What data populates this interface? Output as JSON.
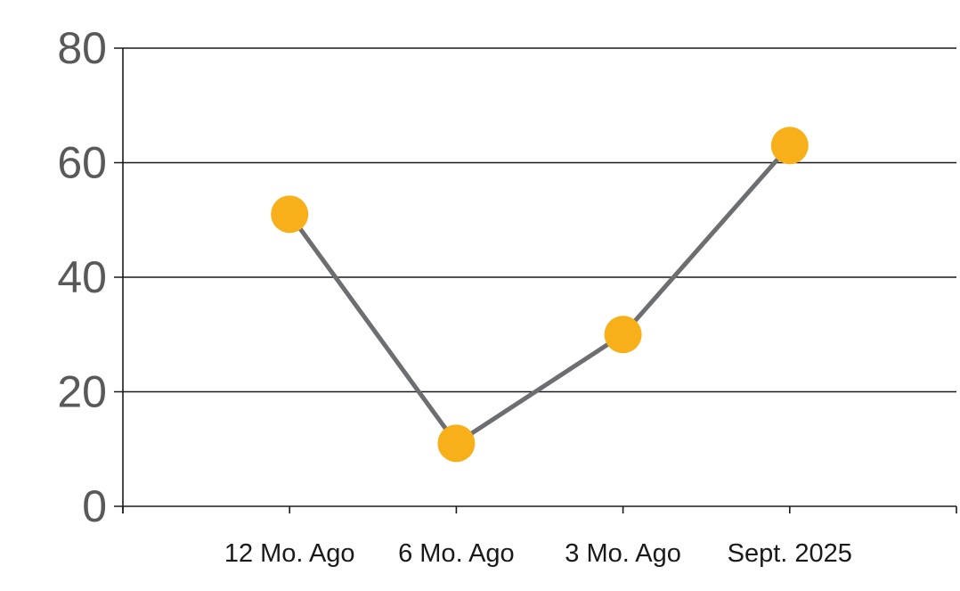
{
  "chart_data": {
    "type": "line",
    "categories": [
      "12 Mo. Ago",
      "6 Mo. Ago",
      "3 Mo. Ago",
      "Sept. 2025"
    ],
    "values": [
      51,
      11,
      30,
      63
    ],
    "title": "",
    "xlabel": "",
    "ylabel": "",
    "ylim": [
      0,
      80
    ],
    "yticks": [
      0,
      20,
      40,
      60,
      80
    ],
    "grid": true,
    "legend": false,
    "legend_position": "none",
    "marker": "circle"
  },
  "style": {
    "background_color": "#FFFFFF",
    "marker_color": "#F7AF1A",
    "series_line_color": "#6D6E71",
    "grid_line_color": "#1A1A1A",
    "axis_line_color": "#1A1A1A",
    "y_tick_label_color": "#595959",
    "x_tick_label_color": "#1A1A1A"
  }
}
